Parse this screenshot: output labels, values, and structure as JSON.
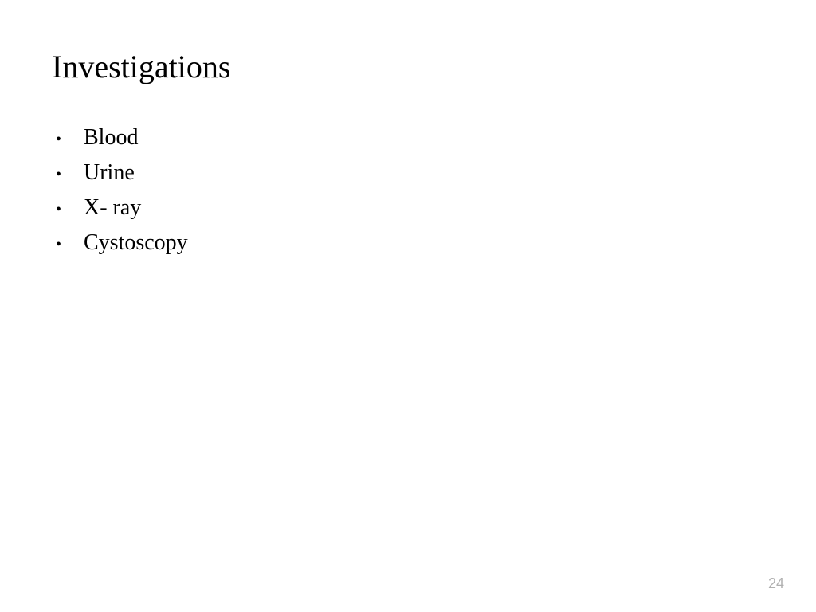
{
  "slide": {
    "title": "Investigations",
    "bullets": [
      "Blood",
      "Urine",
      "X- ray",
      "Cystoscopy"
    ],
    "page_number": "24",
    "styling": {
      "background_color": "#ffffff",
      "title_font_size": 40,
      "title_color": "#000000",
      "bullet_font_size": 28,
      "bullet_color": "#000000",
      "page_number_color": "#b0b0b0",
      "page_number_font_size": 18,
      "font_family": "Times New Roman",
      "bullet_marker": "•"
    }
  }
}
